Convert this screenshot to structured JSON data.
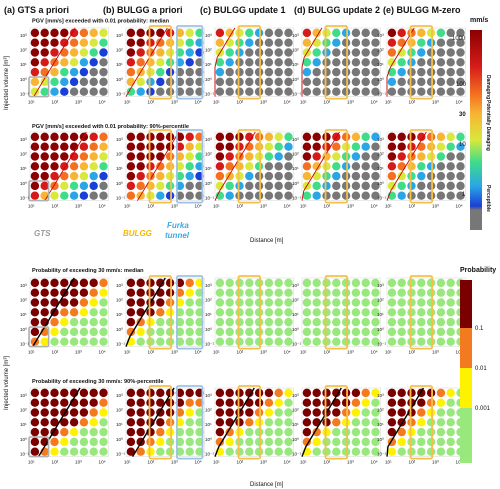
{
  "columns": [
    {
      "title": "(a) GTS a priori"
    },
    {
      "title": "(b) BULGG a priori"
    },
    {
      "title": "(c) BULGG update 1"
    },
    {
      "title": "(d) BULGG update 2"
    },
    {
      "title": "(e) BULGG M-zero"
    }
  ],
  "rows": [
    {
      "title": "PGV [mm/s] exceeded with 0.01 probability: median"
    },
    {
      "title": "PGV [mm/s] exceeded with 0.01 probability: 90%-percentile"
    },
    {
      "title": "Probability of exceeding  30 mm/s: median"
    },
    {
      "title": "Probability of exceeding  30 mm/s: 90%-percentile"
    }
  ],
  "x_tick_labels": [
    "10¹",
    "10²",
    "10³",
    "10⁴"
  ],
  "y_tick_labels": [
    "10⁻¹",
    "10⁰",
    "10¹",
    "10²",
    "10³"
  ],
  "ylabel": "Injected volume [m³]",
  "xlabel": "Distance [m]",
  "annotations": {
    "gts": "GTS",
    "bulgg": "BULGG",
    "furka_line1": "Furka",
    "furka_line2": "tunnel"
  },
  "colorbar_pgv": {
    "unit": "mm/s",
    "ticks": [
      "1000",
      "100",
      "30",
      "10",
      "1"
    ],
    "side_labels": [
      "Damaging",
      "Potentially Damaging",
      "Perceptible"
    ]
  },
  "colorbar_prob": {
    "title": "Probability",
    "ticks": [
      "0.1",
      "0.01",
      "0.001"
    ],
    "colors": [
      "#7a0000",
      "#f47a1f",
      "#fff200",
      "#98e87e"
    ]
  },
  "colors": {
    "gts_box": "#b0b0b0",
    "bulgg_box": "#f5c04a",
    "furka_box": "#9ec3e6",
    "contour": "#cc0000",
    "bulgg_text": "#f5b800",
    "furka_text": "#3fa9e0",
    "gts_text": "#9a9a9a"
  },
  "chart_data": [
    {
      "type": "heatmap",
      "description_rows": "PGV exceeded with 0.01 probability (mm/s)",
      "x_axis": "Distance [m], log scale 10^1 to 10^4",
      "y_axis": "Injected volume [m3], log scale 10^-1 to 10^3",
      "scale": "log",
      "grid": "8 columns x 7 rows of circular markers",
      "range_mm_s": [
        1,
        1000
      ]
    },
    {
      "type": "heatmap",
      "description_rows": "Probability of exceeding 30 mm/s",
      "categories": [
        "0.1",
        "0.01",
        "0.001"
      ],
      "grid": "8 columns x 7 rows of circular markers"
    }
  ]
}
